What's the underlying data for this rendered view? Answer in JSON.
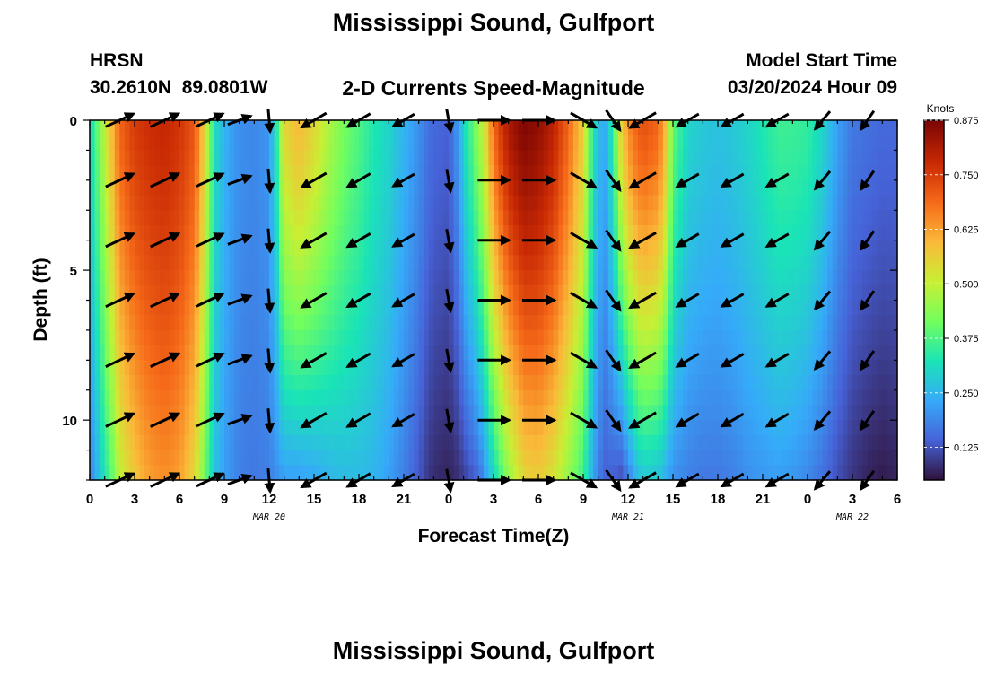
{
  "header": {
    "title": "Mississippi Sound, Gulfport",
    "station_code": "HRSN",
    "coords": "30.2610N  89.0801W",
    "subtitle": "2-D Currents Speed-Magnitude",
    "model_label": "Model Start Time",
    "model_time": "03/20/2024 Hour 09",
    "footer_title": "Mississippi Sound, Gulfport"
  },
  "chart_data": {
    "type": "heatmap",
    "title": "2-D Currents Speed-Magnitude",
    "xlabel": "Forecast Time(Z)",
    "ylabel": "Depth (ft)",
    "x_start_hour": 0,
    "x_end_hour": 54,
    "x_tick_labels": [
      "0",
      "3",
      "6",
      "9",
      "12",
      "15",
      "18",
      "21",
      "0",
      "3",
      "6",
      "9",
      "12",
      "15",
      "18",
      "21",
      "0",
      "3",
      "6"
    ],
    "date_labels": [
      {
        "hour": 12,
        "label": "MAR 20"
      },
      {
        "hour": 36,
        "label": "MAR 21"
      },
      {
        "hour": 51,
        "label": "MAR 22"
      }
    ],
    "y_range": [
      0,
      12
    ],
    "y_major_ticks": [
      0,
      5,
      10
    ],
    "y_inverted": true,
    "colorbar": {
      "unit": "Knots",
      "min": 0.05,
      "max": 0.875,
      "tick_labels": [
        "0.875",
        "0.750",
        "0.625",
        "0.500",
        "0.375",
        "0.250",
        "0.125"
      ],
      "tick_values": [
        0.875,
        0.75,
        0.625,
        0.5,
        0.375,
        0.25,
        0.125
      ],
      "colors": [
        "#30123b",
        "#4662d7",
        "#36aaf9",
        "#1ae4b6",
        "#72fe5e",
        "#c8ef34",
        "#faba39",
        "#f66b19",
        "#ca2a04",
        "#7a0403"
      ]
    },
    "speed_profile_hours": [
      0,
      0.5,
      1.5,
      2,
      3,
      4,
      5,
      6,
      7,
      7.5,
      8,
      8.5,
      9,
      9.5,
      10,
      11,
      12,
      12.5,
      13,
      14,
      15,
      16,
      17,
      18,
      19,
      20,
      21,
      22,
      22.5,
      23,
      24,
      24.5,
      25,
      26,
      26.5,
      27,
      28,
      29,
      30,
      31,
      32,
      33,
      33.5,
      34,
      34.5,
      35,
      35.5,
      36,
      36.5,
      37,
      38,
      38.5,
      39,
      40,
      41,
      42,
      43,
      44,
      45,
      46,
      47,
      48,
      49,
      50,
      51,
      52,
      53,
      54
    ],
    "surface_speed": [
      0.3,
      0.4,
      0.6,
      0.7,
      0.76,
      0.78,
      0.79,
      0.77,
      0.72,
      0.6,
      0.43,
      0.3,
      0.25,
      0.22,
      0.2,
      0.19,
      0.21,
      0.35,
      0.55,
      0.6,
      0.55,
      0.48,
      0.42,
      0.38,
      0.33,
      0.3,
      0.25,
      0.2,
      0.17,
      0.15,
      0.14,
      0.2,
      0.3,
      0.45,
      0.55,
      0.7,
      0.82,
      0.87,
      0.85,
      0.8,
      0.7,
      0.56,
      0.38,
      0.26,
      0.24,
      0.35,
      0.55,
      0.65,
      0.7,
      0.73,
      0.7,
      0.6,
      0.4,
      0.3,
      0.28,
      0.27,
      0.28,
      0.3,
      0.33,
      0.36,
      0.36,
      0.35,
      0.3,
      0.22,
      0.17,
      0.16,
      0.15,
      0.15
    ],
    "bottom_speed": [
      0.18,
      0.25,
      0.4,
      0.5,
      0.58,
      0.63,
      0.65,
      0.63,
      0.55,
      0.45,
      0.34,
      0.26,
      0.22,
      0.2,
      0.18,
      0.17,
      0.18,
      0.2,
      0.22,
      0.22,
      0.23,
      0.25,
      0.26,
      0.26,
      0.25,
      0.22,
      0.18,
      0.13,
      0.1,
      0.08,
      0.07,
      0.08,
      0.1,
      0.15,
      0.22,
      0.3,
      0.45,
      0.55,
      0.57,
      0.53,
      0.45,
      0.36,
      0.26,
      0.18,
      0.14,
      0.14,
      0.12,
      0.17,
      0.24,
      0.28,
      0.27,
      0.24,
      0.2,
      0.18,
      0.17,
      0.17,
      0.18,
      0.2,
      0.21,
      0.22,
      0.21,
      0.19,
      0.16,
      0.12,
      0.09,
      0.07,
      0.06,
      0.07
    ],
    "vector_hours": [
      2,
      5,
      8,
      10,
      12,
      15,
      18,
      21,
      24,
      27,
      30,
      33,
      35,
      37,
      40,
      43,
      46,
      49,
      52
    ],
    "vector_depths_ft": [
      0,
      2,
      4,
      6,
      8,
      10,
      12
    ],
    "vector_directions_deg": [
      65,
      65,
      65,
      70,
      175,
      240,
      240,
      240,
      170,
      90,
      90,
      120,
      145,
      240,
      240,
      240,
      240,
      220,
      215
    ],
    "vector_speed_knots": [
      0.7,
      0.72,
      0.65,
      0.3,
      0.22,
      0.55,
      0.42,
      0.3,
      0.18,
      0.75,
      0.8,
      0.6,
      0.3,
      0.65,
      0.35,
      0.33,
      0.34,
      0.22,
      0.18
    ]
  }
}
